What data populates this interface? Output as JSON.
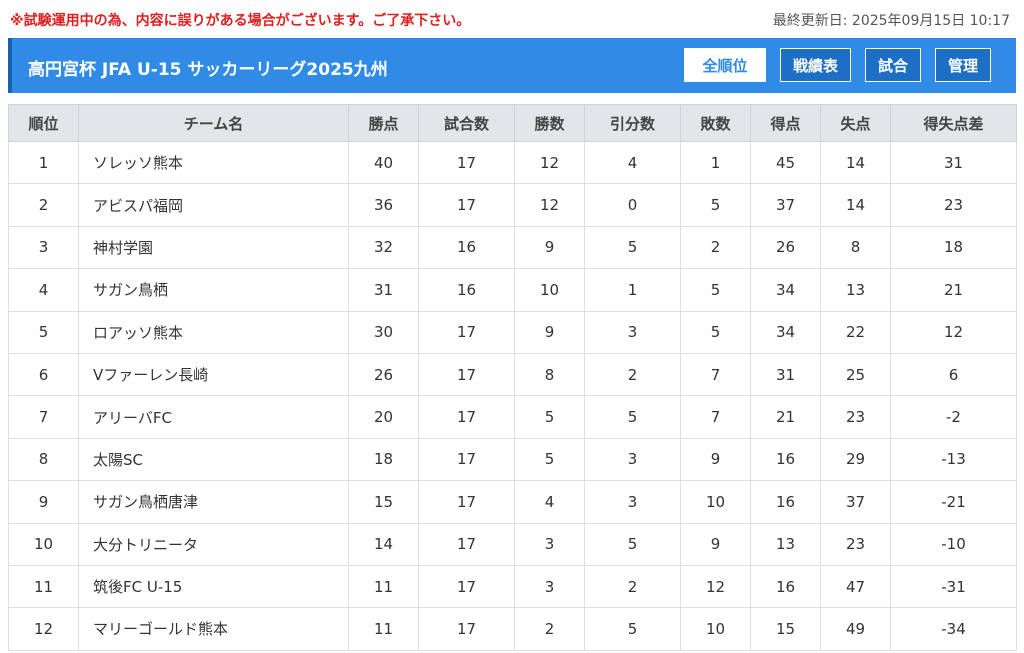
{
  "notice": "※試験運用中の為、内容に誤りがある場合がございます。ご了承下さい。",
  "last_updated": "最終更新日: 2025年09月15日 10:17",
  "league_title": "高円宮杯 JFA U-15 サッカーリーグ2025九州",
  "nav": {
    "standings": "全順位",
    "results_table": "戦績表",
    "matches": "試合",
    "admin": "管理"
  },
  "colors": {
    "header_bg": "#2f8be6",
    "notice": "#e02020",
    "table_header_bg": "#e3e6e8"
  },
  "table": {
    "headers": [
      "順位",
      "チーム名",
      "勝点",
      "試合数",
      "勝数",
      "引分数",
      "敗数",
      "得点",
      "失点",
      "得失点差"
    ],
    "rows": [
      [
        "1",
        "ソレッソ熊本",
        "40",
        "17",
        "12",
        "4",
        "1",
        "45",
        "14",
        "31"
      ],
      [
        "2",
        "アビスパ福岡",
        "36",
        "17",
        "12",
        "0",
        "5",
        "37",
        "14",
        "23"
      ],
      [
        "3",
        "神村学園",
        "32",
        "16",
        "9",
        "5",
        "2",
        "26",
        "8",
        "18"
      ],
      [
        "4",
        "サガン鳥栖",
        "31",
        "16",
        "10",
        "1",
        "5",
        "34",
        "13",
        "21"
      ],
      [
        "5",
        "ロアッソ熊本",
        "30",
        "17",
        "9",
        "3",
        "5",
        "34",
        "22",
        "12"
      ],
      [
        "6",
        "Vファーレン長崎",
        "26",
        "17",
        "8",
        "2",
        "7",
        "31",
        "25",
        "6"
      ],
      [
        "7",
        "アリーバFC",
        "20",
        "17",
        "5",
        "5",
        "7",
        "21",
        "23",
        "-2"
      ],
      [
        "8",
        "太陽SC",
        "18",
        "17",
        "5",
        "3",
        "9",
        "16",
        "29",
        "-13"
      ],
      [
        "9",
        "サガン鳥栖唐津",
        "15",
        "17",
        "4",
        "3",
        "10",
        "16",
        "37",
        "-21"
      ],
      [
        "10",
        "大分トリニータ",
        "14",
        "17",
        "3",
        "5",
        "9",
        "13",
        "23",
        "-10"
      ],
      [
        "11",
        "筑後FC U-15",
        "11",
        "17",
        "3",
        "2",
        "12",
        "16",
        "47",
        "-31"
      ],
      [
        "12",
        "マリーゴールド熊本",
        "11",
        "17",
        "2",
        "5",
        "10",
        "15",
        "49",
        "-34"
      ]
    ]
  }
}
